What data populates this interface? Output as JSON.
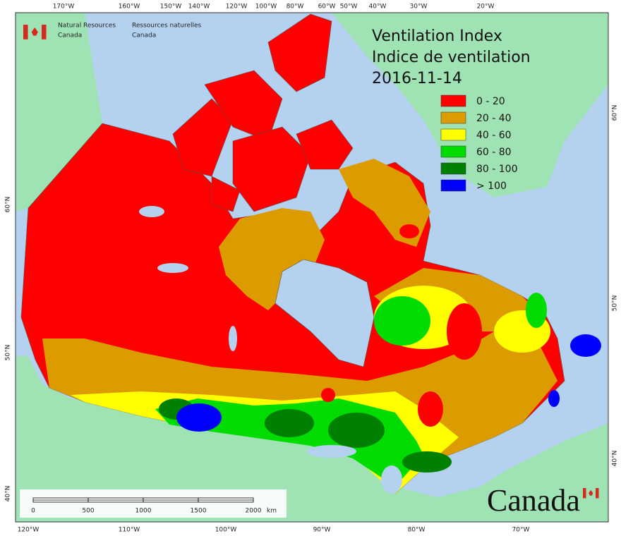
{
  "header": {
    "org_en": [
      "Natural Resources",
      "Canada"
    ],
    "org_fr": [
      "Ressources naturelles",
      "Canada"
    ]
  },
  "title": [
    "Ventilation Index",
    "Indice de ventilation"
  ],
  "date": "2016-11-14",
  "legend": [
    {
      "label": "0 - 20",
      "color": "#ff0000"
    },
    {
      "label": "20 - 40",
      "color": "#dc9c00"
    },
    {
      "label": "40 - 60",
      "color": "#ffff00"
    },
    {
      "label": "60 - 80",
      "color": "#00dc00"
    },
    {
      "label": "80 - 100",
      "color": "#008000"
    },
    {
      "label": "> 100",
      "color": "#0000ff"
    }
  ],
  "top_labels": [
    "170°W",
    "160°W",
    "150°W",
    "140°W",
    "120°W",
    "100°W",
    "80°W",
    "60°W",
    "50°W",
    "40°W",
    "30°W",
    "20°W"
  ],
  "bottom_labels": [
    "120°W",
    "110°W",
    "100°W",
    "90°W",
    "80°W",
    "70°W"
  ],
  "left_labels": [
    "60°N",
    "50°N",
    "40°N"
  ],
  "right_labels": [
    "60°N",
    "50°N",
    "40°N"
  ],
  "scale_bar": {
    "ticks": [
      "0",
      "500",
      "1000",
      "1500",
      "2000"
    ],
    "unit": "km"
  },
  "wordmark": "Canada"
}
